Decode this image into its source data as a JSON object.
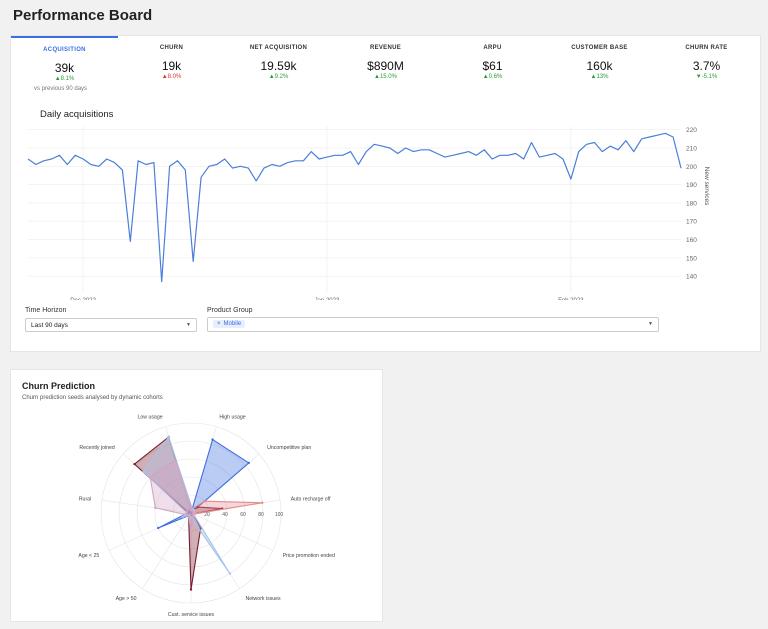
{
  "page_title": "Performance Board",
  "kpis": [
    {
      "label": "ACQUISITION",
      "value": "39k",
      "delta": "▲8.1%",
      "tone": "up-g",
      "active": true
    },
    {
      "label": "CHURN",
      "value": "19k",
      "delta": "▲8.0%",
      "tone": "up-r",
      "active": false
    },
    {
      "label": "NET ACQUISITION",
      "value": "19.59k",
      "delta": "▲9.2%",
      "tone": "up-g",
      "active": false
    },
    {
      "label": "REVENUE",
      "value": "$890M",
      "delta": "▲15.0%",
      "tone": "up-g",
      "active": false
    },
    {
      "label": "ARPU",
      "value": "$61",
      "delta": "▲0.6%",
      "tone": "up-g",
      "active": false
    },
    {
      "label": "CUSTOMER BASE",
      "value": "160k",
      "delta": "▲13%",
      "tone": "up-g",
      "active": false
    },
    {
      "label": "CHURN RATE",
      "value": "3.7%",
      "delta": "▼-5.1%",
      "tone": "down-g",
      "active": false
    }
  ],
  "comparison_note": "vs previous 90 days",
  "line_chart_title": "Daily acquisitions",
  "controls": {
    "time_horizon_label": "Time Horizon",
    "time_horizon_value": "Last 90 days",
    "product_group_label": "Product Group",
    "product_group_chip": "Mobile"
  },
  "colors": {
    "accent": "#3d6ee0",
    "line": "#4a7fd9",
    "positive": "#2a9a3a",
    "negative": "#dd3333"
  },
  "chart_data": [
    {
      "type": "line",
      "title": "Daily acquisitions",
      "xlabel": "",
      "ylabel": "New services",
      "y_axis_side": "right",
      "ylim": [
        133,
        222
      ],
      "yticks": [
        140,
        150,
        160,
        170,
        180,
        190,
        200,
        210,
        220
      ],
      "x_start": "2022-11-24",
      "x_tick_labels": [
        {
          "date": "2022-12-01",
          "label": "Dec 2022"
        },
        {
          "date": "2023-01-01",
          "label": "Jan 2023"
        },
        {
          "date": "2023-02-01",
          "label": "Feb 2023"
        }
      ],
      "grid": true,
      "series": [
        {
          "name": "",
          "values": [
            204,
            201,
            203,
            204,
            206,
            201,
            206,
            204,
            201,
            200,
            204,
            202,
            198,
            159,
            203,
            201,
            202,
            137,
            200,
            203,
            198,
            148,
            194,
            200,
            201,
            204,
            199,
            200,
            199,
            192,
            199,
            201,
            200,
            202,
            203,
            203,
            208,
            204,
            205,
            206,
            206,
            208,
            201,
            208,
            212,
            211,
            210,
            207,
            210,
            208,
            209,
            209,
            207,
            205,
            206,
            207,
            208,
            206,
            209,
            204,
            206,
            206,
            207,
            204,
            213,
            205,
            206,
            207,
            204,
            193,
            208,
            212,
            213,
            208,
            211,
            209,
            214,
            208,
            215,
            216,
            217,
            218,
            216,
            199
          ]
        }
      ]
    },
    {
      "type": "radar",
      "title": "Churn Prediction",
      "subtitle": "Churn prediction seeds analysed by dynamic cohorts",
      "axes": [
        "High usage",
        "Uncompetitive plan",
        "Auto recharge off",
        "Price promotion ended",
        "Network issues",
        "Cust. service issues",
        "Age > 50",
        "Age < 25",
        "Rural",
        "Recently joined",
        "Low usage"
      ],
      "rlim": [
        0,
        100
      ],
      "rticks": [
        20,
        40,
        60,
        80,
        100
      ],
      "series": [
        {
          "name": "",
          "color": "#3d6ee0",
          "values": [
            85,
            85,
            0,
            3,
            5,
            3,
            3,
            40,
            3,
            3,
            0
          ]
        },
        {
          "name": "",
          "color": "#7a1a2e",
          "values": [
            3,
            10,
            35,
            3,
            20,
            85,
            5,
            5,
            3,
            83,
            88
          ]
        },
        {
          "name": "",
          "color": "#e58a8f",
          "values": [
            5,
            20,
            80,
            3,
            5,
            5,
            5,
            5,
            5,
            5,
            5
          ]
        },
        {
          "name": "",
          "color": "#a7c4ea",
          "values": [
            5,
            5,
            3,
            3,
            80,
            5,
            3,
            10,
            5,
            70,
            88
          ]
        },
        {
          "name": "",
          "color": "#d4a3c6",
          "values": [
            3,
            3,
            5,
            3,
            5,
            20,
            5,
            5,
            40,
            60,
            60
          ]
        }
      ]
    }
  ]
}
